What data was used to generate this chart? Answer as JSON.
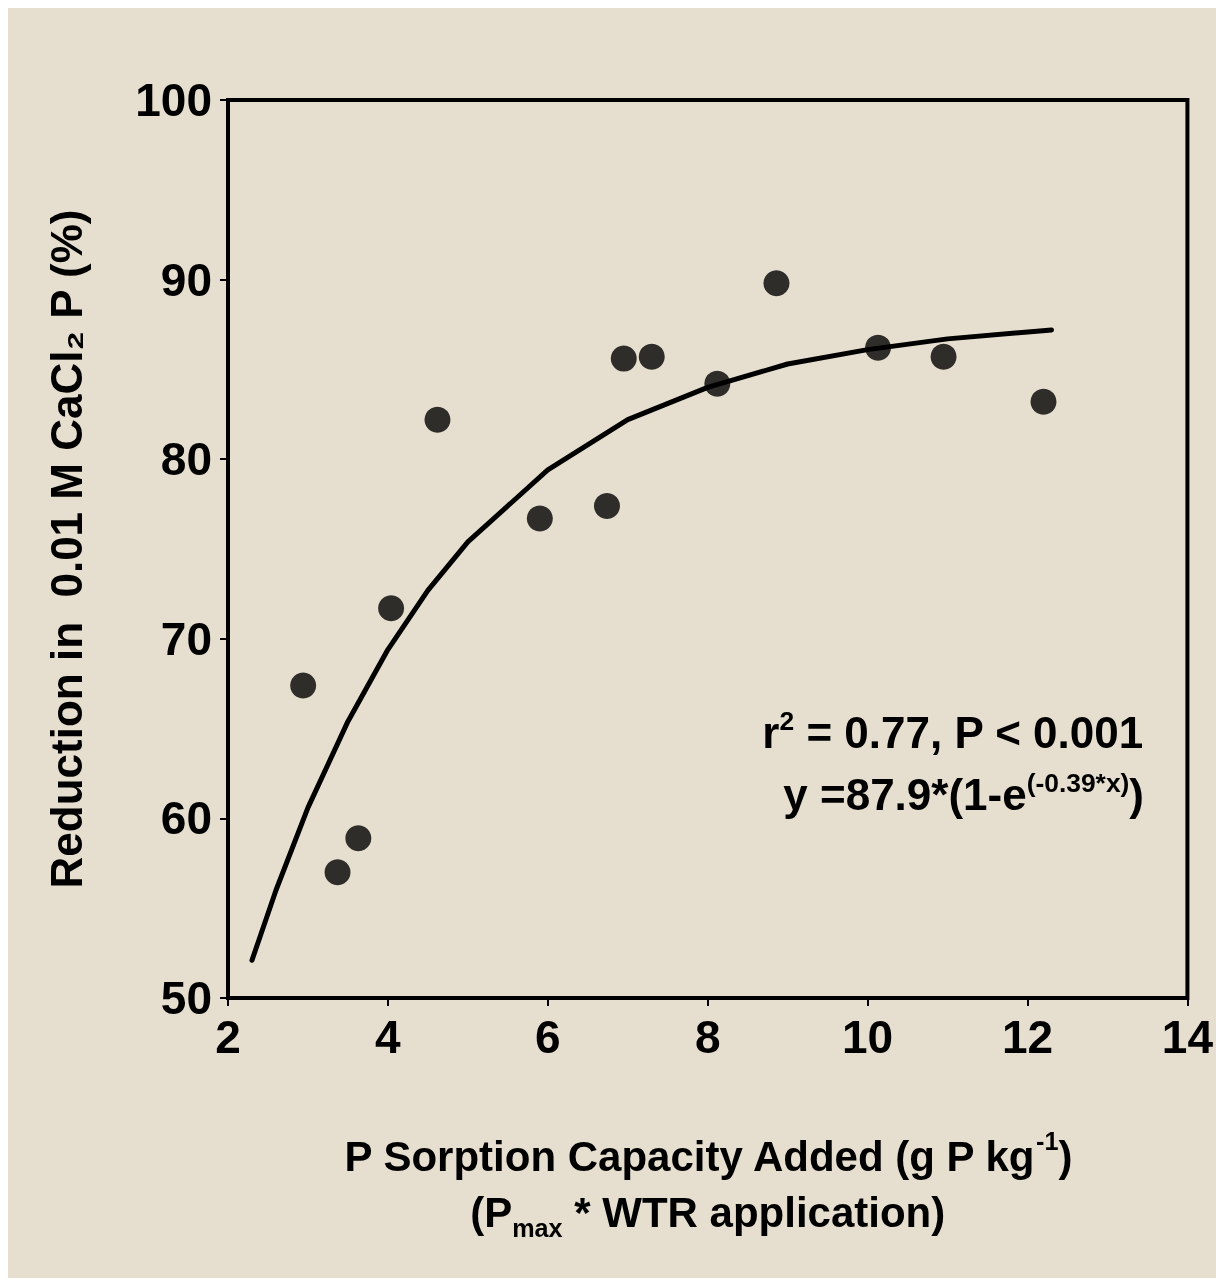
{
  "chart_data": {
    "type": "scatter",
    "xlabel": "P Sorption Capacity Added (g P kg$^{-1}$)\n(P$_{max}$ * WTR application)",
    "ylabel": "Reduction in  0.01 M CaCl₂ P (%)",
    "annotations": [
      "r$^{2}$ = 0.77, P < 0.001",
      "y =87.9*(1-e$^{(-0.39*x)}$)"
    ],
    "x": [
      2.94,
      3.37,
      3.63,
      4.04,
      4.62,
      5.9,
      6.74,
      6.95,
      7.3,
      8.12,
      8.86,
      10.13,
      10.95,
      12.2
    ],
    "series": [
      {
        "color": "#000000",
        "values": [
          67.4,
          57.0,
          58.9,
          71.7,
          82.2,
          76.7,
          77.4,
          85.6,
          85.7,
          84.2,
          89.8,
          86.2,
          85.7,
          83.2
        ]
      },
      {
        "type": "line",
        "color": "#000000",
        "marker": "none",
        "line_style": "solid",
        "x": [
          2.3,
          2.6,
          3,
          3.5,
          4,
          4.5,
          5,
          6,
          7,
          8,
          9,
          10,
          11,
          12.3
        ],
        "values": [
          52.1,
          56.0,
          60.6,
          65.4,
          69.4,
          72.7,
          75.4,
          79.4,
          82.2,
          84.0,
          85.3,
          86.1,
          86.7,
          87.2
        ]
      }
    ],
    "xlim": [
      2,
      14
    ],
    "xticks": [
      2,
      4,
      6,
      8,
      10,
      12,
      14
    ],
    "ylim": [
      50,
      100
    ],
    "yticks": [
      50,
      60,
      70,
      80,
      90,
      100
    ],
    "grid": false,
    "marker": "circle"
  }
}
